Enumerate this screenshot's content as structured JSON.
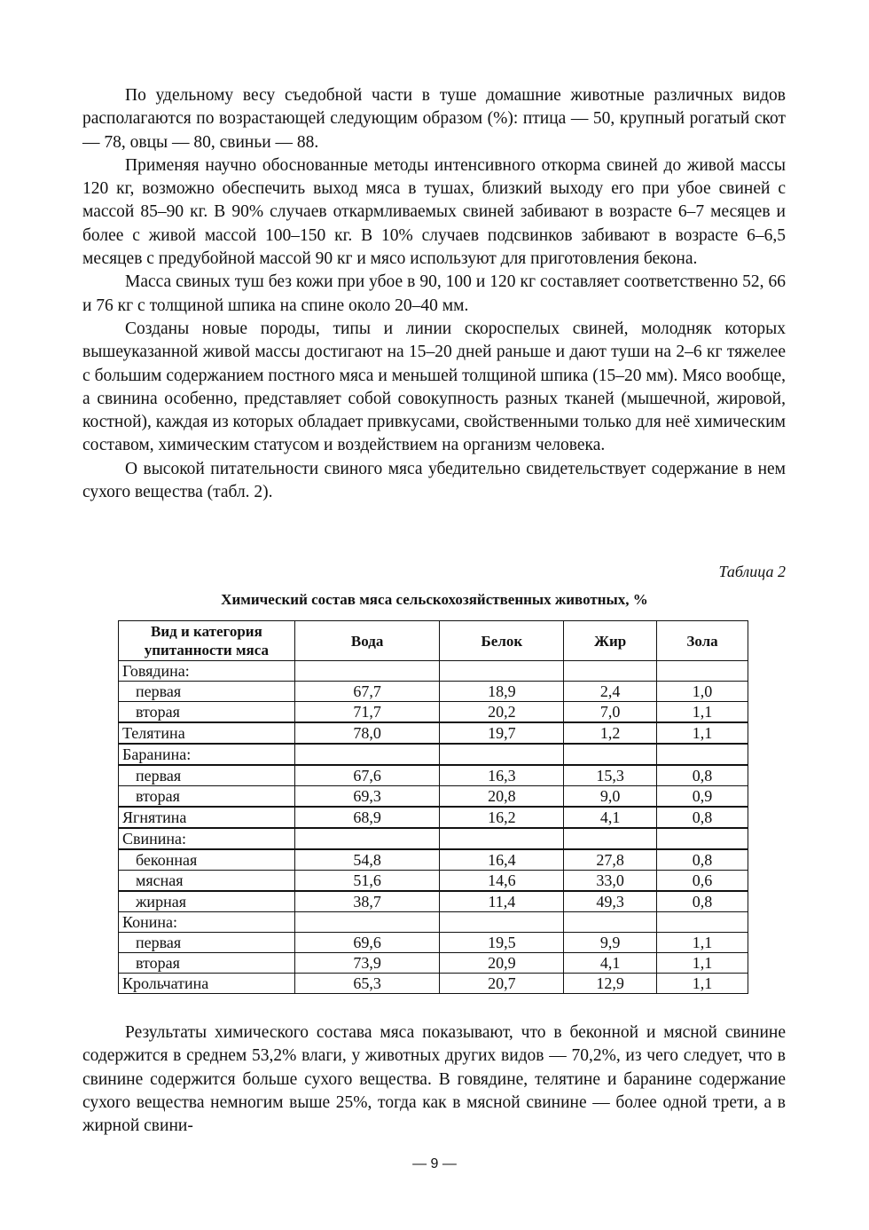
{
  "paragraphs_top": [
    "По удельному весу съедобной части в туше домашние животные различных видов располагаются по возрастающей следующим образом (%): птица — 50, крупный рогатый скот — 78, овцы — 80, свиньи — 88.",
    "Применяя научно обоснованные методы интенсивного откорма свиней до живой массы 120 кг, возможно обеспечить выход мяса в тушах, близкий выходу его при убое свиней с массой 85–90 кг. В 90% случаев откармливаемых свиней забивают в возрасте 6–7 месяцев и более с живой массой 100–150 кг. В 10% случаев подсвинков забивают в возрасте 6–6,5 месяцев с предубойной массой 90 кг и мясо используют для приготовления бекона.",
    "Масса свиных туш без кожи при убое в 90, 100 и 120 кг составляет соответственно 52, 66 и 76 кг с толщиной шпика на спине около 20–40 мм.",
    "Созданы новые породы, типы и линии скороспелых свиней, молодняк которых вышеуказанной живой массы достигают на 15–20 дней раньше и дают туши на 2–6 кг тяжелее с большим содержанием постного мяса и меньшей толщиной шпика (15–20 мм). Мясо вообще, а свинина особенно, представляет собой совокупность разных тканей (мышечной, жировой, костной), каждая из которых обладает привкусами, свойственными только для неё химическим составом, химическим статусом и воздействием на организм человека.",
    "О высокой питательности свиного мяса убедительно свидетельствует содержание в нем сухого вещества (табл. 2)."
  ],
  "table": {
    "label": "Таблица 2",
    "title": "Химический состав мяса сельскохозяйственных животных, %",
    "headers": [
      "Вид и категория упитанности мяса",
      "Вода",
      "Белок",
      "Жир",
      "Зола"
    ],
    "rows": [
      {
        "name": "Говядина:",
        "sub": false,
        "values": [
          "",
          "",
          "",
          ""
        ]
      },
      {
        "name": "первая",
        "sub": true,
        "values": [
          "67,7",
          "18,9",
          "2,4",
          "1,0"
        ]
      },
      {
        "name": "вторая",
        "sub": true,
        "values": [
          "71,7",
          "20,2",
          "7,0",
          "1,1"
        ]
      },
      {
        "name": "Телятина",
        "sub": false,
        "values": [
          "78,0",
          "19,7",
          "1,2",
          "1,1"
        ]
      },
      {
        "name": "Баранина:",
        "sub": false,
        "values": [
          "",
          "",
          "",
          ""
        ]
      },
      {
        "name": "первая",
        "sub": true,
        "values": [
          "67,6",
          "16,3",
          "15,3",
          "0,8"
        ]
      },
      {
        "name": "вторая",
        "sub": true,
        "values": [
          "69,3",
          "20,8",
          "9,0",
          "0,9"
        ]
      },
      {
        "name": "Ягнятина",
        "sub": false,
        "values": [
          "68,9",
          "16,2",
          "4,1",
          "0,8"
        ]
      },
      {
        "name": "Свинина:",
        "sub": false,
        "values": [
          "",
          "",
          "",
          ""
        ]
      },
      {
        "name": "беконная",
        "sub": true,
        "values": [
          "54,8",
          "16,4",
          "27,8",
          "0,8"
        ]
      },
      {
        "name": "мясная",
        "sub": true,
        "values": [
          "51,6",
          "14,6",
          "33,0",
          "0,6"
        ]
      },
      {
        "name": "жирная",
        "sub": true,
        "values": [
          "38,7",
          "11,4",
          "49,3",
          "0,8"
        ]
      },
      {
        "name": "Конина:",
        "sub": false,
        "values": [
          "",
          "",
          "",
          ""
        ]
      },
      {
        "name": "первая",
        "sub": true,
        "values": [
          "69,6",
          "19,5",
          "9,9",
          "1,1"
        ]
      },
      {
        "name": "вторая",
        "sub": true,
        "values": [
          "73,9",
          "20,9",
          "4,1",
          "1,1"
        ]
      },
      {
        "name": "Крольчатина",
        "sub": false,
        "values": [
          "65,3",
          "20,7",
          "12,9",
          "1,1"
        ]
      }
    ]
  },
  "paragraphs_bottom": [
    "Результаты химического состава мяса показывают, что в беконной и мясной свинине содержится в среднем 53,2% влаги, у животных других видов — 70,2%, из чего следует, что в свинине содержится больше сухого вещества. В говядине, телятине и баранине содержание сухого вещества немногим выше 25%, тогда как в мясной свинине — более одной трети, а в жирной свини-"
  ],
  "page_number": "— 9 —"
}
